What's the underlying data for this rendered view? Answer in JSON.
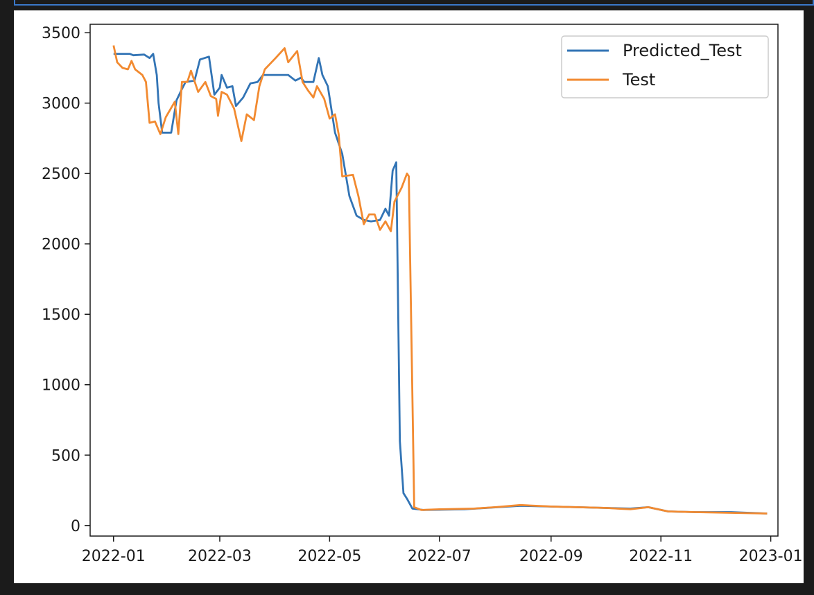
{
  "chart_data": {
    "type": "line",
    "title": "",
    "xlabel": "",
    "ylabel": "",
    "xlim": [
      "2021-12-19",
      "2023-01-05"
    ],
    "ylim": [
      -75,
      3560
    ],
    "x_ticks": [
      "2022-01",
      "2022-03",
      "2022-05",
      "2022-07",
      "2022-09",
      "2022-11",
      "2023-01"
    ],
    "y_ticks": [
      0,
      500,
      1000,
      1500,
      2000,
      2500,
      3000,
      3500
    ],
    "legend": {
      "position": "top-right",
      "entries": [
        "Predicted_Test",
        "Test"
      ]
    },
    "grid": false,
    "colors": {
      "Predicted_Test": "#3274b5",
      "Test": "#f28a30"
    },
    "series": [
      {
        "name": "Predicted_Test",
        "color": "#3274b5",
        "points": [
          [
            "2022-01-01",
            3350
          ],
          [
            "2022-01-10",
            3350
          ],
          [
            "2022-01-12",
            3340
          ],
          [
            "2022-01-18",
            3345
          ],
          [
            "2022-01-21",
            3320
          ],
          [
            "2022-01-23",
            3350
          ],
          [
            "2022-01-25",
            3200
          ],
          [
            "2022-01-26",
            3000
          ],
          [
            "2022-01-28",
            2790
          ],
          [
            "2022-02-02",
            2790
          ],
          [
            "2022-02-05",
            3020
          ],
          [
            "2022-02-08",
            3100
          ],
          [
            "2022-02-10",
            3150
          ],
          [
            "2022-02-15",
            3160
          ],
          [
            "2022-02-18",
            3310
          ],
          [
            "2022-02-23",
            3330
          ],
          [
            "2022-02-26",
            3060
          ],
          [
            "2022-03-01",
            3110
          ],
          [
            "2022-03-02",
            3200
          ],
          [
            "2022-03-05",
            3110
          ],
          [
            "2022-03-08",
            3120
          ],
          [
            "2022-03-10",
            2980
          ],
          [
            "2022-03-14",
            3040
          ],
          [
            "2022-03-18",
            3140
          ],
          [
            "2022-03-22",
            3150
          ],
          [
            "2022-03-25",
            3200
          ],
          [
            "2022-04-08",
            3200
          ],
          [
            "2022-04-12",
            3160
          ],
          [
            "2022-04-15",
            3180
          ],
          [
            "2022-04-17",
            3150
          ],
          [
            "2022-04-22",
            3150
          ],
          [
            "2022-04-25",
            3320
          ],
          [
            "2022-04-27",
            3200
          ],
          [
            "2022-04-30",
            3120
          ],
          [
            "2022-05-04",
            2790
          ],
          [
            "2022-05-08",
            2640
          ],
          [
            "2022-05-12",
            2340
          ],
          [
            "2022-05-16",
            2200
          ],
          [
            "2022-05-20",
            2170
          ],
          [
            "2022-05-24",
            2160
          ],
          [
            "2022-05-29",
            2170
          ],
          [
            "2022-06-01",
            2250
          ],
          [
            "2022-06-03",
            2200
          ],
          [
            "2022-06-05",
            2520
          ],
          [
            "2022-06-07",
            2580
          ],
          [
            "2022-06-09",
            600
          ],
          [
            "2022-06-11",
            230
          ],
          [
            "2022-06-13",
            190
          ],
          [
            "2022-06-16",
            120
          ],
          [
            "2022-06-22",
            110
          ],
          [
            "2022-07-15",
            115
          ],
          [
            "2022-08-15",
            140
          ],
          [
            "2022-09-15",
            130
          ],
          [
            "2022-10-15",
            120
          ],
          [
            "2022-10-25",
            130
          ],
          [
            "2022-11-05",
            100
          ],
          [
            "2022-11-20",
            95
          ],
          [
            "2022-12-10",
            95
          ],
          [
            "2022-12-30",
            85
          ]
        ]
      },
      {
        "name": "Test",
        "color": "#f28a30",
        "points": [
          [
            "2022-01-01",
            3410
          ],
          [
            "2022-01-03",
            3290
          ],
          [
            "2022-01-06",
            3250
          ],
          [
            "2022-01-09",
            3240
          ],
          [
            "2022-01-11",
            3300
          ],
          [
            "2022-01-13",
            3240
          ],
          [
            "2022-01-17",
            3200
          ],
          [
            "2022-01-19",
            3150
          ],
          [
            "2022-01-21",
            2860
          ],
          [
            "2022-01-24",
            2870
          ],
          [
            "2022-01-27",
            2780
          ],
          [
            "2022-01-30",
            2900
          ],
          [
            "2022-02-04",
            3010
          ],
          [
            "2022-02-06",
            2780
          ],
          [
            "2022-02-08",
            3150
          ],
          [
            "2022-02-11",
            3150
          ],
          [
            "2022-02-13",
            3230
          ],
          [
            "2022-02-17",
            3080
          ],
          [
            "2022-02-21",
            3150
          ],
          [
            "2022-02-24",
            3050
          ],
          [
            "2022-02-27",
            3030
          ],
          [
            "2022-02-28",
            2910
          ],
          [
            "2022-03-02",
            3080
          ],
          [
            "2022-03-05",
            3060
          ],
          [
            "2022-03-09",
            2960
          ],
          [
            "2022-03-13",
            2730
          ],
          [
            "2022-03-16",
            2920
          ],
          [
            "2022-03-20",
            2880
          ],
          [
            "2022-03-23",
            3120
          ],
          [
            "2022-03-26",
            3240
          ],
          [
            "2022-04-01",
            3320
          ],
          [
            "2022-04-06",
            3390
          ],
          [
            "2022-04-08",
            3290
          ],
          [
            "2022-04-13",
            3370
          ],
          [
            "2022-04-16",
            3150
          ],
          [
            "2022-04-19",
            3090
          ],
          [
            "2022-04-22",
            3040
          ],
          [
            "2022-04-24",
            3120
          ],
          [
            "2022-04-28",
            3030
          ],
          [
            "2022-05-01",
            2890
          ],
          [
            "2022-05-04",
            2920
          ],
          [
            "2022-05-06",
            2780
          ],
          [
            "2022-05-08",
            2480
          ],
          [
            "2022-05-14",
            2490
          ],
          [
            "2022-05-17",
            2340
          ],
          [
            "2022-05-20",
            2140
          ],
          [
            "2022-05-23",
            2210
          ],
          [
            "2022-05-26",
            2210
          ],
          [
            "2022-05-29",
            2100
          ],
          [
            "2022-06-01",
            2160
          ],
          [
            "2022-06-04",
            2090
          ],
          [
            "2022-06-06",
            2300
          ],
          [
            "2022-06-10",
            2400
          ],
          [
            "2022-06-13",
            2500
          ],
          [
            "2022-06-14",
            2480
          ],
          [
            "2022-06-17",
            130
          ],
          [
            "2022-06-21",
            110
          ],
          [
            "2022-07-01",
            115
          ],
          [
            "2022-07-20",
            120
          ],
          [
            "2022-08-01",
            130
          ],
          [
            "2022-08-15",
            145
          ],
          [
            "2022-09-01",
            135
          ],
          [
            "2022-09-15",
            130
          ],
          [
            "2022-10-01",
            125
          ],
          [
            "2022-10-15",
            115
          ],
          [
            "2022-10-25",
            130
          ],
          [
            "2022-11-05",
            100
          ],
          [
            "2022-11-20",
            95
          ],
          [
            "2022-12-10",
            90
          ],
          [
            "2022-12-30",
            85
          ]
        ]
      }
    ]
  }
}
